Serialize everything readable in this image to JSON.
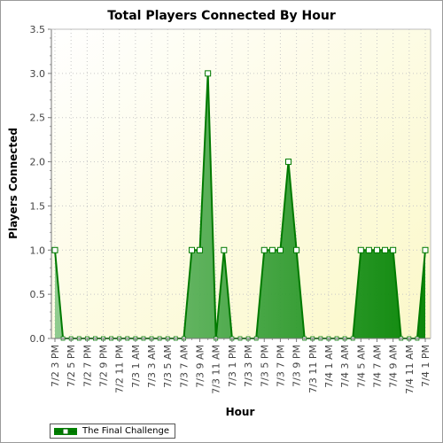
{
  "chart_data": {
    "type": "area",
    "title": "Total Players Connected By Hour",
    "xlabel": "Hour",
    "ylabel": "Players Connected",
    "ylim": [
      0,
      3.5
    ],
    "yticks": [
      "0.0",
      "0.5",
      "1.0",
      "1.5",
      "2.0",
      "2.5",
      "3.0",
      "3.5"
    ],
    "grid": true,
    "legend_position": "bottom-left",
    "x": [
      "7/2 3 PM",
      "7/2 4 PM",
      "7/2 5 PM",
      "7/2 6 PM",
      "7/2 7 PM",
      "7/2 8 PM",
      "7/2 9 PM",
      "7/2 10 PM",
      "7/2 11 PM",
      "7/3 12 AM",
      "7/3 1 AM",
      "7/3 2 AM",
      "7/3 3 AM",
      "7/3 4 AM",
      "7/3 5 AM",
      "7/3 6 AM",
      "7/3 7 AM",
      "7/3 8 AM",
      "7/3 9 AM",
      "7/3 10 AM",
      "7/3 11 AM",
      "7/3 12 PM",
      "7/3 1 PM",
      "7/3 2 PM",
      "7/3 3 PM",
      "7/3 4 PM",
      "7/3 5 PM",
      "7/3 6 PM",
      "7/3 7 PM",
      "7/3 8 PM",
      "7/3 9 PM",
      "7/3 10 PM",
      "7/3 11 PM",
      "7/4 12 AM",
      "7/4 1 AM",
      "7/4 2 AM",
      "7/4 3 AM",
      "7/4 4 AM",
      "7/4 5 AM",
      "7/4 6 AM",
      "7/4 7 AM",
      "7/4 8 AM",
      "7/4 9 AM",
      "7/4 10 AM",
      "7/4 11 AM",
      "7/4 12 PM",
      "7/4 1 PM"
    ],
    "tick_labels": [
      "7/2 3 PM",
      "7/2 5 PM",
      "7/2 7 PM",
      "7/2 9 PM",
      "7/2 11 PM",
      "7/3 1 AM",
      "7/3 3 AM",
      "7/3 5 AM",
      "7/3 7 AM",
      "7/3 9 AM",
      "7/3 11 AM",
      "7/3 1 PM",
      "7/3 3 PM",
      "7/3 5 PM",
      "7/3 7 PM",
      "7/3 9 PM",
      "7/3 11 PM",
      "7/4 1 AM",
      "7/4 3 AM",
      "7/4 5 AM",
      "7/4 7 AM",
      "7/4 9 AM",
      "7/4 11 AM",
      "7/4 1 PM"
    ],
    "series": [
      {
        "name": "The Final Challenge",
        "color": "#008000",
        "values": [
          1,
          0,
          0,
          0,
          0,
          0,
          0,
          0,
          0,
          0,
          0,
          0,
          0,
          0,
          0,
          0,
          0,
          1,
          1,
          3,
          0,
          1,
          0,
          0,
          0,
          0,
          1,
          1,
          1,
          2,
          1,
          0,
          0,
          0,
          0,
          0,
          0,
          0,
          1,
          1,
          1,
          1,
          1,
          0,
          0,
          0,
          1
        ]
      }
    ]
  }
}
